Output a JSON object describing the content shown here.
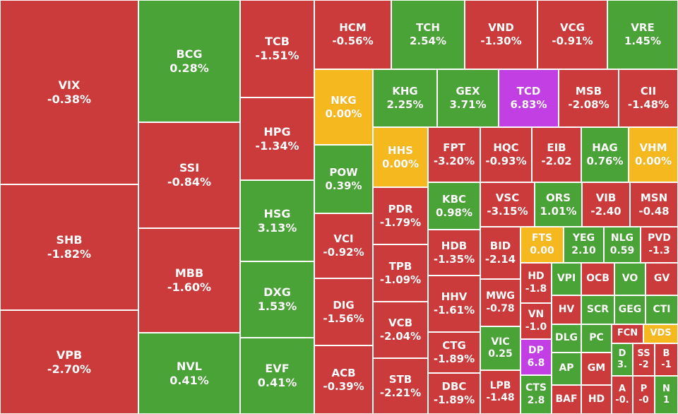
{
  "colors": {
    "down": "#cc3b3b",
    "up": "#4aa336",
    "flat": "#f5b91f",
    "ceiling": "#c23fe3"
  },
  "chart_data": {
    "type": "treemap",
    "tiles": [
      {
        "symbol": "VIX",
        "change": "-0.38%",
        "status": "down"
      },
      {
        "symbol": "SHB",
        "change": "-1.82%",
        "status": "down"
      },
      {
        "symbol": "VPB",
        "change": "-2.70%",
        "status": "down"
      },
      {
        "symbol": "BCG",
        "change": "0.28%",
        "status": "up"
      },
      {
        "symbol": "SSI",
        "change": "-0.84%",
        "status": "down"
      },
      {
        "symbol": "MBB",
        "change": "-1.60%",
        "status": "down"
      },
      {
        "symbol": "NVL",
        "change": "0.41%",
        "status": "up"
      },
      {
        "symbol": "TCB",
        "change": "-1.51%",
        "status": "down"
      },
      {
        "symbol": "HPG",
        "change": "-1.34%",
        "status": "down"
      },
      {
        "symbol": "HSG",
        "change": "3.13%",
        "status": "up"
      },
      {
        "symbol": "DXG",
        "change": "1.53%",
        "status": "up"
      },
      {
        "symbol": "EVF",
        "change": "0.41%",
        "status": "up"
      },
      {
        "symbol": "HCM",
        "change": "-0.56%",
        "status": "down"
      },
      {
        "symbol": "TCH",
        "change": "2.54%",
        "status": "up"
      },
      {
        "symbol": "VND",
        "change": "-1.30%",
        "status": "down"
      },
      {
        "symbol": "VCG",
        "change": "-0.91%",
        "status": "down"
      },
      {
        "symbol": "VRE",
        "change": "1.45%",
        "status": "up"
      },
      {
        "symbol": "NKG",
        "change": "0.00%",
        "status": "flat"
      },
      {
        "symbol": "KHG",
        "change": "2.25%",
        "status": "up"
      },
      {
        "symbol": "GEX",
        "change": "3.71%",
        "status": "up"
      },
      {
        "symbol": "TCD",
        "change": "6.83%",
        "status": "ceiling"
      },
      {
        "symbol": "MSB",
        "change": "-2.08%",
        "status": "down"
      },
      {
        "symbol": "CII",
        "change": "-1.48%",
        "status": "down"
      },
      {
        "symbol": "POW",
        "change": "0.39%",
        "status": "up"
      },
      {
        "symbol": "HHS",
        "change": "0.00%",
        "status": "flat"
      },
      {
        "symbol": "FPT",
        "change": "-3.20%",
        "status": "down"
      },
      {
        "symbol": "HQC",
        "change": "-0.93%",
        "status": "down"
      },
      {
        "symbol": "EIB",
        "change": "-2.02",
        "status": "down"
      },
      {
        "symbol": "HAG",
        "change": "0.76%",
        "status": "up"
      },
      {
        "symbol": "VHM",
        "change": "0.00%",
        "status": "flat"
      },
      {
        "symbol": "VCI",
        "change": "-0.92%",
        "status": "down"
      },
      {
        "symbol": "PDR",
        "change": "-1.79%",
        "status": "down"
      },
      {
        "symbol": "KBC",
        "change": "0.98%",
        "status": "up"
      },
      {
        "symbol": "VSC",
        "change": "-3.15%",
        "status": "down"
      },
      {
        "symbol": "ORS",
        "change": "1.01%",
        "status": "up"
      },
      {
        "symbol": "VIB",
        "change": "-2.40",
        "status": "down"
      },
      {
        "symbol": "MSN",
        "change": "-0.48",
        "status": "down"
      },
      {
        "symbol": "TPB",
        "change": "-1.09%",
        "status": "down"
      },
      {
        "symbol": "HDB",
        "change": "-1.35%",
        "status": "down"
      },
      {
        "symbol": "BID",
        "change": "-2.14",
        "status": "down"
      },
      {
        "symbol": "FTS",
        "change": "0.00",
        "status": "flat"
      },
      {
        "symbol": "YEG",
        "change": "2.10",
        "status": "up"
      },
      {
        "symbol": "NLG",
        "change": "0.59",
        "status": "up"
      },
      {
        "symbol": "PVD",
        "change": "-1.3",
        "status": "down"
      },
      {
        "symbol": "DIG",
        "change": "-1.56%",
        "status": "down"
      },
      {
        "symbol": "HHV",
        "change": "-1.61%",
        "status": "down"
      },
      {
        "symbol": "MWG",
        "change": "-0.78",
        "status": "down"
      },
      {
        "symbol": "HD",
        "change": "-1.8",
        "status": "down"
      },
      {
        "symbol": "VPI",
        "change": "",
        "status": "up"
      },
      {
        "symbol": "OCB",
        "change": "",
        "status": "down"
      },
      {
        "symbol": "VO",
        "change": "",
        "status": "up"
      },
      {
        "symbol": "GV",
        "change": "",
        "status": "down"
      },
      {
        "symbol": "VCB",
        "change": "-2.04%",
        "status": "down"
      },
      {
        "symbol": "VN",
        "change": "-1.0",
        "status": "down"
      },
      {
        "symbol": "HV",
        "change": "",
        "status": "down"
      },
      {
        "symbol": "SCR",
        "change": "",
        "status": "up"
      },
      {
        "symbol": "GEG",
        "change": "",
        "status": "up"
      },
      {
        "symbol": "CTI",
        "change": "",
        "status": "up"
      },
      {
        "symbol": "CTG",
        "change": "-1.89%",
        "status": "down"
      },
      {
        "symbol": "VIC",
        "change": "0.25",
        "status": "up"
      },
      {
        "symbol": "DLG",
        "change": "",
        "status": "up"
      },
      {
        "symbol": "PC",
        "change": "",
        "status": "up"
      },
      {
        "symbol": "FCN",
        "change": "",
        "status": "down"
      },
      {
        "symbol": "VDS",
        "change": "",
        "status": "flat"
      },
      {
        "symbol": "ACB",
        "change": "-0.39%",
        "status": "down"
      },
      {
        "symbol": "DP",
        "change": "6.8",
        "status": "ceiling"
      },
      {
        "symbol": "AP",
        "change": "",
        "status": "up"
      },
      {
        "symbol": "GM",
        "change": "",
        "status": "down"
      },
      {
        "symbol": "D",
        "change": "3.",
        "status": "up"
      },
      {
        "symbol": "SS",
        "change": "-2",
        "status": "down"
      },
      {
        "symbol": "B",
        "change": "-1",
        "status": "down"
      },
      {
        "symbol": "STB",
        "change": "-2.21%",
        "status": "down"
      },
      {
        "symbol": "DBC",
        "change": "-1.89%",
        "status": "down"
      },
      {
        "symbol": "LPB",
        "change": "-1.48",
        "status": "down"
      },
      {
        "symbol": "CTS",
        "change": "2.8",
        "status": "up"
      },
      {
        "symbol": "BAF",
        "change": "",
        "status": "down"
      },
      {
        "symbol": "HD",
        "change": "",
        "status": "down"
      },
      {
        "symbol": "A",
        "change": "-0.",
        "status": "down"
      },
      {
        "symbol": "P",
        "change": "-0",
        "status": "down"
      },
      {
        "symbol": "N",
        "change": "1",
        "status": "up"
      }
    ]
  }
}
